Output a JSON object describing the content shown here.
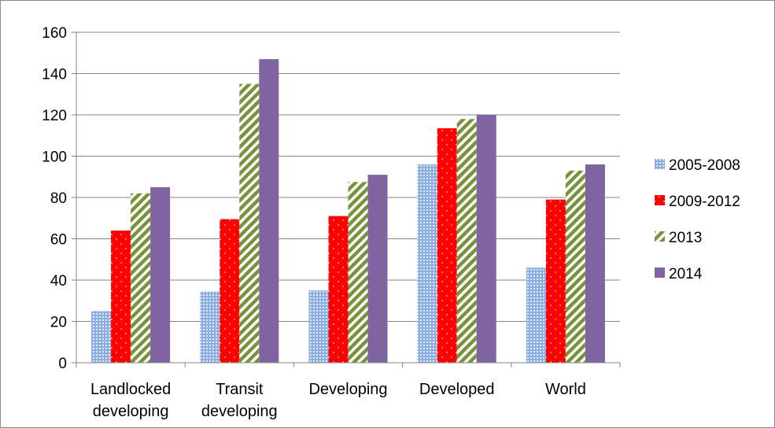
{
  "chart_data": {
    "type": "bar",
    "categories": [
      [
        "Landlocked",
        "developing"
      ],
      [
        "Transit",
        "developing"
      ],
      [
        "Developing"
      ],
      [
        "Developed"
      ],
      [
        "World"
      ]
    ],
    "series": [
      {
        "name": "2005-2008",
        "values": [
          25,
          34.5,
          35,
          96,
          46
        ],
        "color": "#4f81bd",
        "pattern": "dots"
      },
      {
        "name": "2009-2012",
        "values": [
          64,
          69.5,
          71,
          113.5,
          79
        ],
        "color": "#ff0000",
        "pattern": "sparse-dots"
      },
      {
        "name": "2013",
        "values": [
          82,
          135,
          87.5,
          118,
          93
        ],
        "color": "#9bbb59",
        "pattern": "diagonal"
      },
      {
        "name": "2014",
        "values": [
          85,
          147,
          91,
          120,
          96
        ],
        "color": "#8064a2",
        "pattern": "solid"
      }
    ],
    "ylim": [
      0,
      160
    ],
    "yticks": [
      0,
      20,
      40,
      60,
      80,
      100,
      120,
      140,
      160
    ],
    "grid": true,
    "legend_position": "right",
    "title": "",
    "xlabel": "",
    "ylabel": ""
  }
}
